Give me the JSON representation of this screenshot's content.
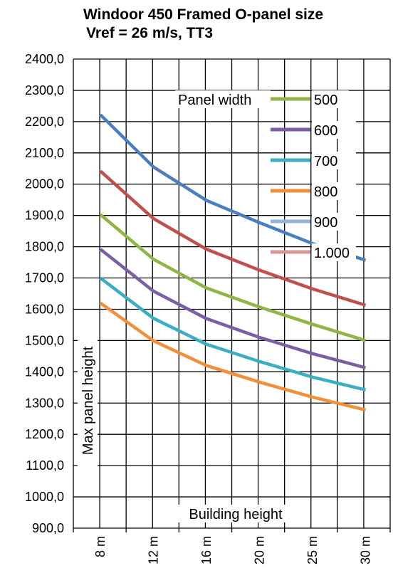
{
  "chart_data": {
    "type": "line",
    "title_line1": "Windoor 450 Framed O-panel size",
    "title_line2": "Vref = 26 m/s, TT3",
    "xlabel": "Building height",
    "ylabel": "Max panel height",
    "categories": [
      "8 m",
      "12 m",
      "16 m",
      "20 m",
      "25 m",
      "30 m"
    ],
    "yticks": [
      "900,0",
      "1000,0",
      "1100,0",
      "1200,0",
      "1300,0",
      "1400,0",
      "1500,0",
      "1600,0",
      "1700,0",
      "1800,0",
      "1900,0",
      "2000,0",
      "2100,0",
      "2200,0",
      "2300,0",
      "2400,0"
    ],
    "ylim": [
      900,
      2400
    ],
    "grid": true,
    "legend_title": "Panel width",
    "legend_position": "top-right",
    "series": [
      {
        "name": "500",
        "color": "#8DB645",
        "values": [
          1903,
          1760,
          1668,
          1607,
          1552,
          1500
        ]
      },
      {
        "name": "600",
        "color": "#7B5EA6",
        "values": [
          1792,
          1658,
          1570,
          1510,
          1458,
          1413
        ]
      },
      {
        "name": "700",
        "color": "#3AAFC4",
        "values": [
          1700,
          1571,
          1488,
          1433,
          1383,
          1342
        ]
      },
      {
        "name": "800",
        "color": "#F18F3B",
        "values": [
          1620,
          1499,
          1420,
          1367,
          1319,
          1278
        ]
      },
      {
        "name": "900",
        "color": "#4A7EBF",
        "values": [
          2222,
          2055,
          1948,
          1877,
          1810,
          1757
        ]
      },
      {
        "name": "1.000",
        "color": "#C0504D",
        "values": [
          2042,
          1890,
          1792,
          1725,
          1665,
          1613
        ]
      }
    ],
    "legend_colors": [
      "#8DB645",
      "#7B5EA6",
      "#3AAFC4",
      "#F18F3B",
      "#95B3D7",
      "#D99694"
    ]
  }
}
